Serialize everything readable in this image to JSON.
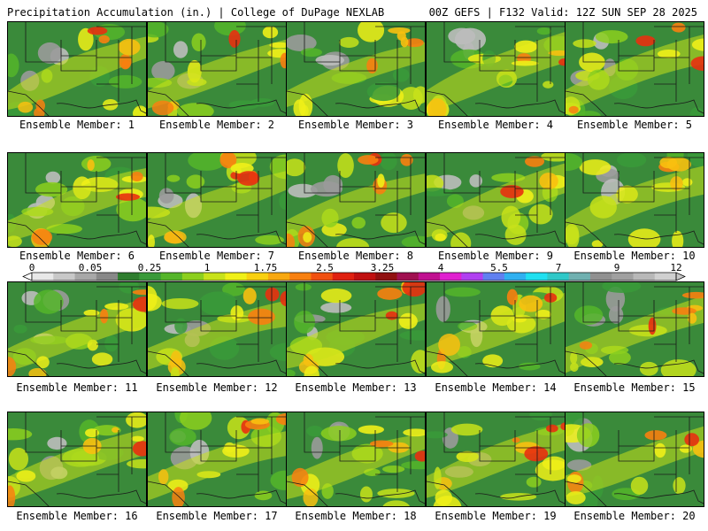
{
  "header": {
    "title": "Precipitation Accumulation (in.) | College of DuPage NEXLAB",
    "run_info": "00Z GEFS | F132 Valid: 12Z SUN SEP 28 2025"
  },
  "members": [
    {
      "label": "Ensemble Member: 1"
    },
    {
      "label": "Ensemble Member: 2"
    },
    {
      "label": "Ensemble Member: 3"
    },
    {
      "label": "Ensemble Member: 4"
    },
    {
      "label": "Ensemble Member: 5"
    },
    {
      "label": "Ensemble Member: 6"
    },
    {
      "label": "Ensemble Member: 7"
    },
    {
      "label": "Ensemble Member: 8"
    },
    {
      "label": "Ensemble Member: 9"
    },
    {
      "label": "Ensemble Member: 10"
    },
    {
      "label": "Ensemble Member: 11"
    },
    {
      "label": "Ensemble Member: 12"
    },
    {
      "label": "Ensemble Member: 13"
    },
    {
      "label": "Ensemble Member: 14"
    },
    {
      "label": "Ensemble Member: 15"
    },
    {
      "label": "Ensemble Member: 16"
    },
    {
      "label": "Ensemble Member: 17"
    },
    {
      "label": "Ensemble Member: 18"
    },
    {
      "label": "Ensemble Member: 19"
    },
    {
      "label": "Ensemble Member: 20"
    }
  ],
  "colorbar": {
    "labels": [
      "0",
      "0.05",
      "0.25",
      "1",
      "1.75",
      "2.5",
      "3.25",
      "4",
      "5.5",
      "7",
      "9",
      "12"
    ],
    "colors": [
      "#e8e8e8",
      "#c8c8c8",
      "#a8a8a8",
      "#888888",
      "#2e7d2e",
      "#3a9a3a",
      "#55b52a",
      "#8ccf1e",
      "#c8e21a",
      "#f0f018",
      "#f8d010",
      "#f8a810",
      "#f88010",
      "#f05010",
      "#e02010",
      "#c01010",
      "#901010",
      "#a01050",
      "#c01090",
      "#e020d0",
      "#b040f0",
      "#6080f0",
      "#30b0f0",
      "#20e0f0",
      "#30c8c8",
      "#70b0b0",
      "#909090",
      "#a0a0a0",
      "#b8b8b8",
      "#d0d0d0"
    ]
  }
}
